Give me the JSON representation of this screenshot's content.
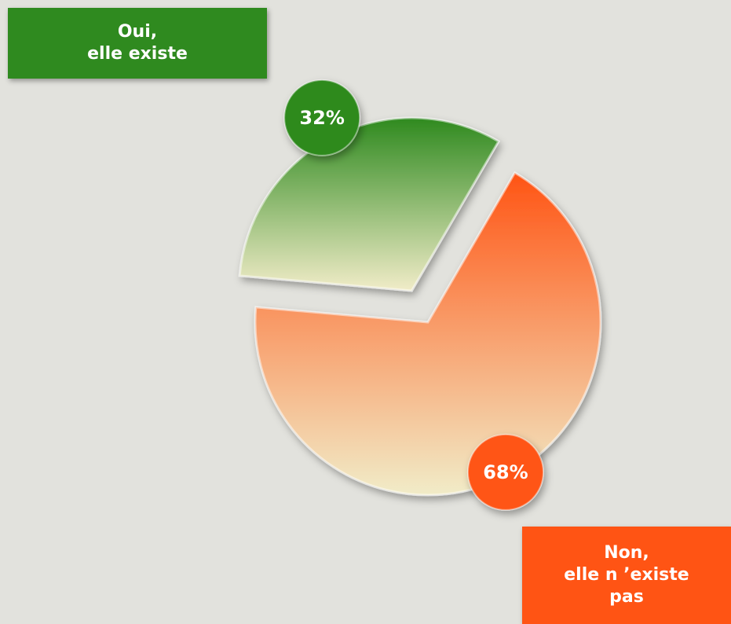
{
  "chart_data": {
    "type": "pie",
    "categories": [
      "Oui,\nelle existe",
      "Non,\nelle n ’existe\npas"
    ],
    "values": [
      32,
      68
    ],
    "value_labels": [
      "32%",
      "68%"
    ],
    "colors": [
      "#2f8a1f",
      "#ff5414"
    ]
  }
}
